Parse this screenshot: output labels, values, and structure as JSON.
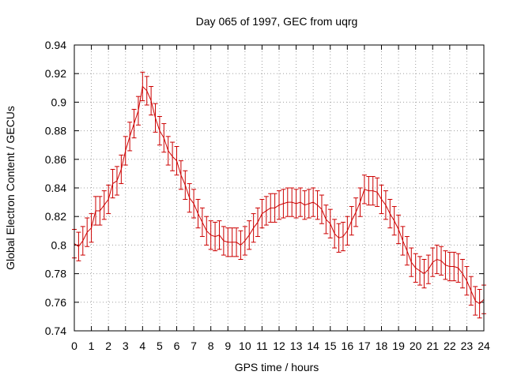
{
  "chart_data": {
    "type": "line",
    "title": "Day 065 of 1997, GEC from uqrg",
    "xlabel": "GPS time / hours",
    "ylabel": "Global Electron Content / GECUs",
    "xlim": [
      0,
      24
    ],
    "ylim": [
      0.74,
      0.94
    ],
    "x_ticks": [
      "0",
      "1",
      "2",
      "3",
      "4",
      "5",
      "6",
      "7",
      "8",
      "9",
      "10",
      "11",
      "12",
      "13",
      "14",
      "15",
      "16",
      "17",
      "18",
      "19",
      "20",
      "21",
      "22",
      "23",
      "24"
    ],
    "y_ticks": [
      "0.74",
      "0.76",
      "0.78",
      "0.8",
      "0.82",
      "0.84",
      "0.86",
      "0.88",
      "0.9",
      "0.92",
      "0.94"
    ],
    "grid": true,
    "series": [
      {
        "color": "#cc0000",
        "error_bar": 0.01,
        "x": [
          0,
          0.25,
          0.5,
          0.75,
          1,
          1.25,
          1.5,
          1.75,
          2,
          2.25,
          2.5,
          2.75,
          3,
          3.25,
          3.5,
          3.75,
          4,
          4.25,
          4.5,
          4.75,
          5,
          5.25,
          5.5,
          5.75,
          6,
          6.25,
          6.5,
          6.75,
          7,
          7.25,
          7.5,
          7.75,
          8,
          8.25,
          8.5,
          8.75,
          9,
          9.25,
          9.5,
          9.75,
          10,
          10.25,
          10.5,
          10.75,
          11,
          11.25,
          11.5,
          11.75,
          12,
          12.25,
          12.5,
          12.75,
          13,
          13.25,
          13.5,
          13.75,
          14,
          14.25,
          14.5,
          14.75,
          15,
          15.25,
          15.5,
          15.75,
          16,
          16.25,
          16.5,
          16.75,
          17,
          17.25,
          17.5,
          17.75,
          18,
          18.25,
          18.5,
          18.75,
          19,
          19.25,
          19.5,
          19.75,
          20,
          20.25,
          20.5,
          20.75,
          21,
          21.25,
          21.5,
          21.75,
          22,
          22.25,
          22.5,
          22.75,
          23,
          23.25,
          23.5,
          23.75,
          24
        ],
        "y": [
          0.801,
          0.799,
          0.803,
          0.809,
          0.812,
          0.824,
          0.824,
          0.828,
          0.832,
          0.843,
          0.845,
          0.853,
          0.866,
          0.876,
          0.885,
          0.894,
          0.911,
          0.908,
          0.901,
          0.889,
          0.88,
          0.875,
          0.866,
          0.862,
          0.859,
          0.849,
          0.842,
          0.833,
          0.829,
          0.822,
          0.816,
          0.81,
          0.807,
          0.806,
          0.807,
          0.803,
          0.802,
          0.802,
          0.802,
          0.8,
          0.803,
          0.807,
          0.812,
          0.816,
          0.822,
          0.824,
          0.826,
          0.826,
          0.828,
          0.829,
          0.83,
          0.83,
          0.829,
          0.83,
          0.828,
          0.829,
          0.83,
          0.828,
          0.825,
          0.818,
          0.815,
          0.808,
          0.805,
          0.806,
          0.81,
          0.817,
          0.823,
          0.83,
          0.839,
          0.838,
          0.838,
          0.837,
          0.832,
          0.828,
          0.822,
          0.817,
          0.811,
          0.803,
          0.796,
          0.788,
          0.784,
          0.782,
          0.78,
          0.783,
          0.788,
          0.79,
          0.789,
          0.786,
          0.785,
          0.785,
          0.784,
          0.78,
          0.775,
          0.768,
          0.761,
          0.759,
          0.762
        ]
      }
    ]
  }
}
